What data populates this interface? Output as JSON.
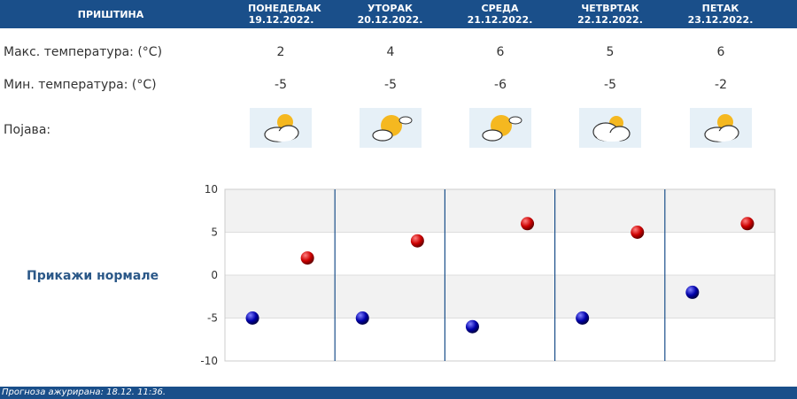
{
  "header": {
    "city": "ПРИШТИНА",
    "days": [
      {
        "name": "ПОНЕДЕЉАК",
        "date": "19.12.2022."
      },
      {
        "name": "УТОРАК",
        "date": "20.12.2022."
      },
      {
        "name": "СРЕДА",
        "date": "21.12.2022."
      },
      {
        "name": "ЧЕТВРТАК",
        "date": "22.12.2022."
      },
      {
        "name": "ПЕТАК",
        "date": "23.12.2022."
      }
    ]
  },
  "rows": {
    "max_label": "Макс. температура: (°C)",
    "min_label": "Мин. температура: (°C)",
    "phenomenon_label": "Појава:"
  },
  "icons": [
    "partly-cloudy-icon",
    "mostly-sunny-icon",
    "mostly-sunny-icon",
    "cloudy-sun-icon",
    "partly-cloudy-icon"
  ],
  "show_normals": "Прикажи нормале",
  "footer": {
    "text": "Прогноза ажурирана:  18.12. 11:36."
  },
  "colors": {
    "header": "#1a4f8a",
    "max_dot": "#cc0000",
    "min_dot": "#0000aa",
    "plot_band": "#f2f2f2"
  },
  "chart_data": {
    "type": "scatter",
    "categories": [
      "19.12.2022.",
      "20.12.2022.",
      "21.12.2022.",
      "22.12.2022.",
      "23.12.2022."
    ],
    "ylim": [
      -10,
      10
    ],
    "yticks": [
      10,
      5,
      0,
      -5,
      -10
    ],
    "series": [
      {
        "values": [
          2,
          4,
          6,
          5,
          6
        ]
      },
      {
        "values": [
          -5,
          -5,
          -6,
          -5,
          -2
        ]
      }
    ]
  }
}
